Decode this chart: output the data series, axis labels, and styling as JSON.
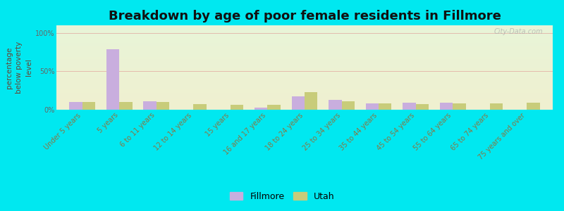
{
  "title": "Breakdown by age of poor female residents in Fillmore",
  "ylabel": "percentage\nbelow poverty\nlevel",
  "background_outer": "#00e8f0",
  "background_inner_top": "#e8f5d8",
  "background_inner_bottom": "#f0f0d0",
  "categories": [
    "Under 5 years",
    "5 years",
    "6 to 11 years",
    "12 to 14 years",
    "15 years",
    "16 and 17 years",
    "18 to 24 years",
    "25 to 34 years",
    "35 to 44 years",
    "45 to 54 years",
    "55 to 64 years",
    "65 to 74 years",
    "75 years and over"
  ],
  "fillmore_values": [
    10,
    79,
    11,
    0,
    0,
    3,
    17,
    13,
    8,
    9,
    9,
    0,
    0
  ],
  "utah_values": [
    10,
    10,
    10,
    7,
    6,
    6,
    23,
    11,
    8,
    7,
    8,
    8,
    9
  ],
  "fillmore_color": "#c9aede",
  "utah_color": "#c8cc7a",
  "bar_width": 0.35,
  "ylim": [
    0,
    110
  ],
  "yticks": [
    0,
    50,
    100
  ],
  "ytick_labels": [
    "0%",
    "50%",
    "100%"
  ],
  "title_fontsize": 13,
  "axis_label_fontsize": 7.5,
  "tick_label_fontsize": 7,
  "legend_fontsize": 9,
  "watermark": "City-Data.com",
  "grid_color": "#dd8888",
  "xlabel_color": "#887744",
  "ylabel_color": "#664433"
}
